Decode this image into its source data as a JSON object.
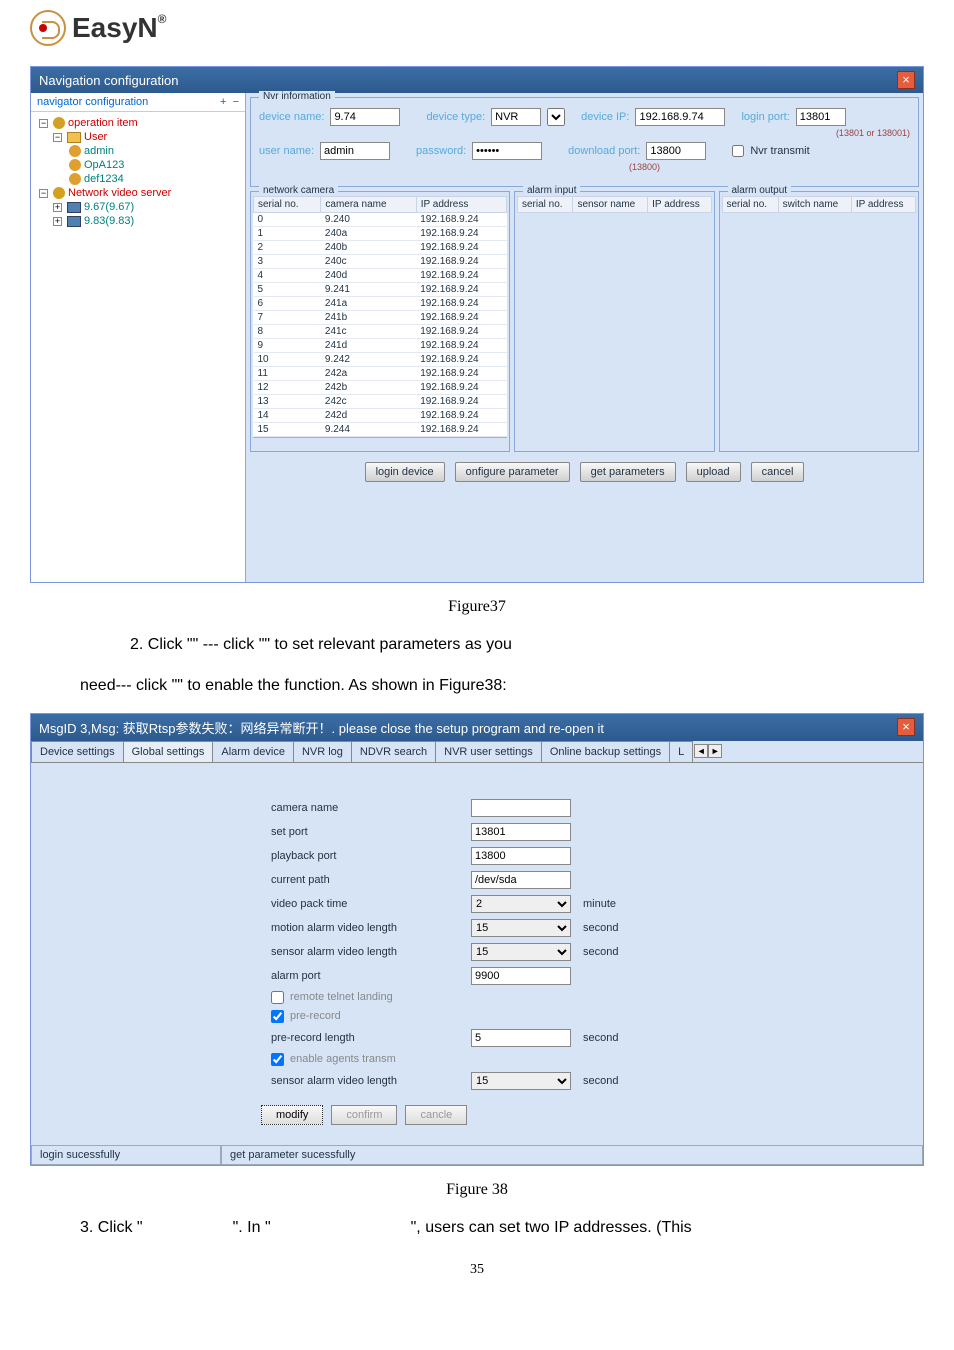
{
  "logo": {
    "text": "EasyN",
    "reg": "®"
  },
  "win1": {
    "title": "Navigation configuration",
    "nav_header": "navigator configuration",
    "tree": {
      "op_item": "operation item",
      "user": "User",
      "admin": "admin",
      "opa": "OpA123",
      "def": "def1234",
      "nvs": "Network video server",
      "n1": "9.67(9.67)",
      "n2": "9.83(9.83)"
    },
    "info": {
      "legend": "Nvr information",
      "device_name_lbl": "device name:",
      "device_name": "9.74",
      "device_type_lbl": "device type:",
      "device_type": "NVR",
      "device_ip_lbl": "device IP:",
      "device_ip": "192.168.9.74",
      "login_port_lbl": "login port:",
      "login_port": "13801",
      "user_name_lbl": "user name:",
      "user_name": "admin",
      "password_lbl": "password:",
      "password": "******",
      "download_port_lbl": "download port:",
      "download_port": "13800",
      "nvr_transmit": "Nvr transmit",
      "note1": "(13801 or 138001)",
      "note2": "(13800)"
    },
    "cols": {
      "net_legend": "network camera",
      "alarm_in_legend": "alarm input",
      "alarm_out_legend": "alarm output",
      "h_serial": "serial no.",
      "h_name": "camera name",
      "h_ip": "IP address",
      "h_sensor": "sensor name",
      "h_switch": "switch name"
    },
    "cameras": [
      {
        "s": "0",
        "n": "9.240",
        "ip": "192.168.9.24"
      },
      {
        "s": "1",
        "n": "240a",
        "ip": "192.168.9.24"
      },
      {
        "s": "2",
        "n": "240b",
        "ip": "192.168.9.24"
      },
      {
        "s": "3",
        "n": "240c",
        "ip": "192.168.9.24"
      },
      {
        "s": "4",
        "n": "240d",
        "ip": "192.168.9.24"
      },
      {
        "s": "5",
        "n": "9.241",
        "ip": "192.168.9.24"
      },
      {
        "s": "6",
        "n": "241a",
        "ip": "192.168.9.24"
      },
      {
        "s": "7",
        "n": "241b",
        "ip": "192.168.9.24"
      },
      {
        "s": "8",
        "n": "241c",
        "ip": "192.168.9.24"
      },
      {
        "s": "9",
        "n": "241d",
        "ip": "192.168.9.24"
      },
      {
        "s": "10",
        "n": "9.242",
        "ip": "192.168.9.24"
      },
      {
        "s": "11",
        "n": "242a",
        "ip": "192.168.9.24"
      },
      {
        "s": "12",
        "n": "242b",
        "ip": "192.168.9.24"
      },
      {
        "s": "13",
        "n": "242c",
        "ip": "192.168.9.24"
      },
      {
        "s": "14",
        "n": "242d",
        "ip": "192.168.9.24"
      },
      {
        "s": "15",
        "n": "9.244",
        "ip": "192.168.9.24"
      }
    ],
    "buttons": {
      "login": "login device",
      "config": "onfigure parameter",
      "get": "get parameters",
      "upload": "upload",
      "cancel": "cancel"
    }
  },
  "fig37": "Figure37",
  "text1a": "2.  Click  \"",
  "text1b": "\"  ---  click  \"",
  "text1c": "\"  to  set  relevant  parameters  as  you",
  "text2a": "need--- click    \"",
  "text2b": "\" to enable the function. As shown in Figure38:",
  "win2": {
    "title": "MsgID 3,Msg: 获取Rtsp参数失败：网络异常断开！. please close the setup program and re-open it",
    "tabs": [
      "Device settings",
      "Global settings",
      "Alarm device",
      "NVR log",
      "NDVR search",
      "NVR user settings",
      "Online backup settings",
      "L"
    ],
    "form": {
      "camera_name": "camera name",
      "set_port": "set port",
      "set_port_v": "13801",
      "playback_port": "playback port",
      "playback_port_v": "13800",
      "current_path": "current path",
      "current_path_v": "/dev/sda",
      "video_pack": "video pack time",
      "video_pack_v": "2",
      "minute": "minute",
      "motion_len": "motion alarm video length",
      "motion_len_v": "15",
      "second": "second",
      "sensor_len": "sensor alarm video length",
      "sensor_len_v": "15",
      "alarm_port": "alarm port",
      "alarm_port_v": "9900",
      "remote_telnet": "remote telnet landing",
      "pre_record": "pre-record",
      "pre_record_len": "pre-record length",
      "pre_record_len_v": "5",
      "enable_agents": "enable agents transm",
      "sensor_len2": "sensor alarm video length",
      "sensor_len2_v": "15"
    },
    "fbuttons": {
      "modify": "modify",
      "confirm": "confirm",
      "cancel": "cancle"
    },
    "status1": "login sucessfully",
    "status2": "get parameter sucessfully"
  },
  "fig38": "Figure 38",
  "text3a": "3.    Click \"",
  "text3b": "\". In \"",
  "text3c": "\", users can set two IP addresses. (This",
  "pagenum": "35"
}
